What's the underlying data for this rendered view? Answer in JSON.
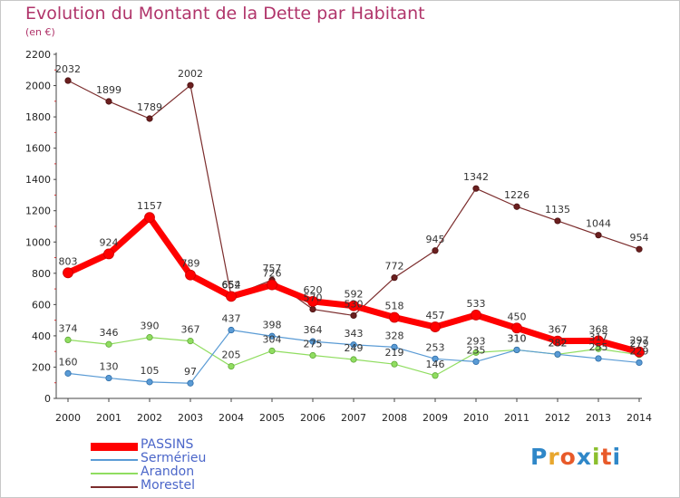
{
  "title": "Evolution du Montant de la Dette par Habitant",
  "subtitle": "(en €)",
  "logo": {
    "text": "Proxiti",
    "colors": [
      "#2f87c8",
      "#e8a72e",
      "#e85a2a",
      "#2f87c8",
      "#8bbf2e",
      "#e85a2a",
      "#2f87c8"
    ]
  },
  "chart_data": {
    "type": "line",
    "title": "Evolution du Montant de la Dette par Habitant",
    "ylabel": "(en €)",
    "xlabel": "",
    "x": [
      "2000",
      "2001",
      "2002",
      "2003",
      "2004",
      "2005",
      "2006",
      "2007",
      "2008",
      "2009",
      "2010",
      "2011",
      "2012",
      "2013",
      "2014"
    ],
    "ylim": [
      0,
      2200
    ],
    "yticks": [
      0,
      200,
      400,
      600,
      800,
      1000,
      1200,
      1400,
      1600,
      1800,
      2000,
      2200
    ],
    "grid": false,
    "legend_position": "bottom-left",
    "series": [
      {
        "name": "PASSINS",
        "color": "#ff0000",
        "values": [
          803,
          924,
          1157,
          789,
          652,
          726,
          620,
          592,
          518,
          457,
          533,
          450,
          367,
          368,
          297
        ]
      },
      {
        "name": "Sermérieu",
        "color": "#5a9bd5",
        "values": [
          160,
          130,
          105,
          97,
          437,
          398,
          364,
          343,
          328,
          253,
          235,
          310,
          282,
          255,
          229
        ]
      },
      {
        "name": "Arandon",
        "color": "#90dd60",
        "values": [
          374,
          346,
          390,
          367,
          205,
          304,
          275,
          249,
          219,
          146,
          293,
          310,
          282,
          317,
          279
        ]
      },
      {
        "name": "Morestel",
        "color": "#7b2c2c",
        "values": [
          2032,
          1899,
          1789,
          2002,
          654,
          757,
          570,
          530,
          772,
          945,
          1342,
          1226,
          1135,
          1044,
          954
        ]
      }
    ]
  }
}
